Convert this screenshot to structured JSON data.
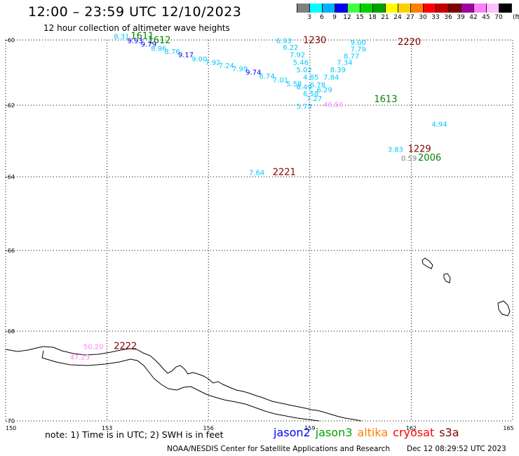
{
  "header": {
    "title": "12:00 – 23:59 UTC 12/10/2023",
    "subtitle": "12 hour collection of altimeter wave heights"
  },
  "legend": {
    "unit": "(ft)",
    "items": [
      {
        "label": "3",
        "color": "#808080"
      },
      {
        "label": "6",
        "color": "#00ffff"
      },
      {
        "label": "9",
        "color": "#00b0ff"
      },
      {
        "label": "12",
        "color": "#0000ff"
      },
      {
        "label": "15",
        "color": "#40ff40"
      },
      {
        "label": "18",
        "color": "#00d000"
      },
      {
        "label": "21",
        "color": "#00a000"
      },
      {
        "label": "24",
        "color": "#ffff00"
      },
      {
        "label": "27",
        "color": "#ffd000"
      },
      {
        "label": "30",
        "color": "#ff8000"
      },
      {
        "label": "33",
        "color": "#ff0000"
      },
      {
        "label": "36",
        "color": "#c00000"
      },
      {
        "label": "39",
        "color": "#800000"
      },
      {
        "label": "42",
        "color": "#a000a0"
      },
      {
        "label": "45",
        "color": "#ff80ff"
      },
      {
        "label": "70",
        "color": "#ffc0ff"
      },
      {
        "label": "",
        "color": "#000000"
      }
    ]
  },
  "map": {
    "lon_range": [
      150,
      165
    ],
    "lat_range": [
      -60,
      -70
    ],
    "lon_ticks": [
      "150",
      "153",
      "156",
      "159",
      "162",
      "165"
    ],
    "lat_ticks": [
      "-60",
      "-62",
      "-64",
      "-66",
      "-68",
      "-70"
    ],
    "time_labels": [
      {
        "text": "1611",
        "lon": 153.7,
        "lat": -59.97,
        "color": "#008000"
      },
      {
        "text": "1612",
        "lon": 154.2,
        "lat": -60.1,
        "color": "#008000"
      },
      {
        "text": "1230",
        "lon": 158.8,
        "lat": -60.1,
        "color": "#800000"
      },
      {
        "text": "2220",
        "lon": 161.6,
        "lat": -60.15,
        "color": "#800000"
      },
      {
        "text": "1613",
        "lon": 160.9,
        "lat": -61.9,
        "color": "#008000"
      },
      {
        "text": "1229",
        "lon": 161.9,
        "lat": -63.3,
        "color": "#800000"
      },
      {
        "text": "2006",
        "lon": 162.2,
        "lat": -63.55,
        "color": "#008000"
      },
      {
        "text": "2221",
        "lon": 157.9,
        "lat": -63.95,
        "color": "#800000"
      },
      {
        "text": "2222",
        "lon": 153.2,
        "lat": -68.4,
        "color": "#800000"
      }
    ],
    "wave_heights": [
      {
        "text": "8.31",
        "lon": 153.2,
        "lat": -59.97,
        "color": "#00c8ff"
      },
      {
        "text": "9.93",
        "lon": 153.6,
        "lat": -60.1,
        "color": "#0000ff"
      },
      {
        "text": "9.79",
        "lon": 154.0,
        "lat": -60.2,
        "color": "#0000ff"
      },
      {
        "text": "8.96",
        "lon": 154.3,
        "lat": -60.33,
        "color": "#00c8ff"
      },
      {
        "text": "8.76",
        "lon": 154.7,
        "lat": -60.43,
        "color": "#00c8ff"
      },
      {
        "text": "9.17",
        "lon": 155.1,
        "lat": -60.53,
        "color": "#0000ff"
      },
      {
        "text": "9.00",
        "lon": 155.5,
        "lat": -60.66,
        "color": "#00c8ff"
      },
      {
        "text": "7.92",
        "lon": 155.9,
        "lat": -60.76,
        "color": "#00c8ff"
      },
      {
        "text": "7.24",
        "lon": 156.3,
        "lat": -60.86,
        "color": "#00c8ff"
      },
      {
        "text": "7.99",
        "lon": 156.7,
        "lat": -60.96,
        "color": "#00c8ff"
      },
      {
        "text": "9.74",
        "lon": 157.1,
        "lat": -61.06,
        "color": "#0000ff"
      },
      {
        "text": "6.74",
        "lon": 157.5,
        "lat": -61.18,
        "color": "#00c8ff"
      },
      {
        "text": "7.01",
        "lon": 157.9,
        "lat": -61.3,
        "color": "#00c8ff"
      },
      {
        "text": "5.58",
        "lon": 158.3,
        "lat": -61.42,
        "color": "#00c8ff"
      },
      {
        "text": "6.49",
        "lon": 158.6,
        "lat": -61.52,
        "color": "#00c8ff"
      },
      {
        "text": "6.93",
        "lon": 158.0,
        "lat": -60.1,
        "color": "#00c8ff"
      },
      {
        "text": "6.22",
        "lon": 158.2,
        "lat": -60.3,
        "color": "#00c8ff"
      },
      {
        "text": "7.92",
        "lon": 158.4,
        "lat": -60.53,
        "color": "#00c8ff"
      },
      {
        "text": "5.46",
        "lon": 158.5,
        "lat": -60.76,
        "color": "#00c8ff"
      },
      {
        "text": "5.02",
        "lon": 158.6,
        "lat": -60.99,
        "color": "#00c8ff"
      },
      {
        "text": "4.85",
        "lon": 158.8,
        "lat": -61.22,
        "color": "#00c8ff"
      },
      {
        "text": "6.78",
        "lon": 159.0,
        "lat": -61.45,
        "color": "#00c8ff"
      },
      {
        "text": "9.00",
        "lon": 160.2,
        "lat": -60.15,
        "color": "#00c8ff"
      },
      {
        "text": "7.79",
        "lon": 160.2,
        "lat": -60.35,
        "color": "#00c8ff"
      },
      {
        "text": "8.77",
        "lon": 160.0,
        "lat": -60.57,
        "color": "#00c8ff"
      },
      {
        "text": "7.34",
        "lon": 159.8,
        "lat": -60.76,
        "color": "#00c8ff"
      },
      {
        "text": "8.39",
        "lon": 159.6,
        "lat": -60.99,
        "color": "#00c8ff"
      },
      {
        "text": "7.84",
        "lon": 159.4,
        "lat": -61.22,
        "color": "#00c8ff"
      },
      {
        "text": "6.29",
        "lon": 159.2,
        "lat": -61.6,
        "color": "#00c8ff"
      },
      {
        "text": "6.58",
        "lon": 158.8,
        "lat": -61.72,
        "color": "#00c8ff"
      },
      {
        "text": "7.27",
        "lon": 158.9,
        "lat": -61.87,
        "color": "#00c8ff"
      },
      {
        "text": "5.73",
        "lon": 158.6,
        "lat": -62.1,
        "color": "#00c8ff"
      },
      {
        "text": "46.56",
        "lon": 159.4,
        "lat": -62.05,
        "color": "#ff80ff"
      },
      {
        "text": "4.94",
        "lon": 162.6,
        "lat": -62.6,
        "color": "#00c8ff"
      },
      {
        "text": "3.83",
        "lon": 161.3,
        "lat": -63.3,
        "color": "#00c8ff"
      },
      {
        "text": "0.59",
        "lon": 161.7,
        "lat": -63.55,
        "color": "#808080"
      },
      {
        "text": "7.64",
        "lon": 157.2,
        "lat": -63.95,
        "color": "#00c8ff"
      },
      {
        "text": "50.20",
        "lon": 152.3,
        "lat": -68.4,
        "color": "#ff80ff"
      },
      {
        "text": "47.23",
        "lon": 151.9,
        "lat": -68.63,
        "color": "#ff80ff"
      }
    ]
  },
  "footer": {
    "note": "note:  1) Time is in UTC;  2) SWH is in feet",
    "satellites": [
      {
        "name": "jason2",
        "color": "#0000ff"
      },
      {
        "name": "jason3",
        "color": "#00a000"
      },
      {
        "name": "altika",
        "color": "#ff8000"
      },
      {
        "name": "cryosat",
        "color": "#ff0000"
      },
      {
        "name": "s3a",
        "color": "#800000"
      }
    ],
    "credit": "NOAA/NESDIS Center for Satellite Applications and Research",
    "timestamp": "Dec 12 08:29:52 UTC 2023"
  }
}
